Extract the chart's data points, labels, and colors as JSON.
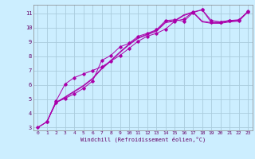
{
  "xlabel": "Windchill (Refroidissement éolien,°C)",
  "bg_color": "#cceeff",
  "grid_color": "#aaccdd",
  "line_color": "#aa00aa",
  "xlim": [
    -0.5,
    23.5
  ],
  "ylim": [
    2.8,
    11.6
  ],
  "xticks": [
    0,
    1,
    2,
    3,
    4,
    5,
    6,
    7,
    8,
    9,
    10,
    11,
    12,
    13,
    14,
    15,
    16,
    17,
    18,
    19,
    20,
    21,
    22,
    23
  ],
  "yticks": [
    3,
    4,
    5,
    6,
    7,
    8,
    9,
    10,
    11
  ],
  "lines": [
    {
      "x": [
        0,
        1,
        2,
        3,
        4,
        5,
        6,
        7,
        8,
        9,
        10,
        11,
        12,
        13,
        14,
        15,
        16,
        17,
        18,
        19,
        20,
        21,
        22,
        23
      ],
      "y": [
        3.0,
        3.4,
        4.75,
        5.05,
        5.35,
        5.75,
        6.25,
        7.7,
        8.05,
        8.65,
        8.9,
        9.4,
        9.6,
        9.85,
        10.5,
        10.55,
        10.45,
        11.05,
        11.25,
        10.35,
        10.4,
        10.5,
        10.5,
        11.15
      ],
      "marker": true
    },
    {
      "x": [
        0,
        1,
        2,
        3,
        4,
        5,
        6,
        7,
        8,
        9,
        10,
        11,
        12,
        13,
        14,
        15,
        16,
        17,
        18,
        19,
        20,
        21,
        22,
        23
      ],
      "y": [
        3.0,
        3.4,
        4.75,
        5.1,
        5.5,
        5.9,
        6.4,
        7.1,
        7.65,
        8.25,
        8.8,
        9.25,
        9.5,
        9.75,
        10.35,
        10.45,
        10.85,
        11.05,
        10.4,
        10.3,
        10.3,
        10.4,
        10.45,
        11.1
      ],
      "marker": false
    },
    {
      "x": [
        0,
        1,
        2,
        3,
        4,
        5,
        6,
        7,
        8,
        9,
        10,
        11,
        12,
        13,
        14,
        15,
        16,
        17,
        18,
        19,
        20,
        21,
        22,
        23
      ],
      "y": [
        3.0,
        3.4,
        4.75,
        5.15,
        5.55,
        5.95,
        6.45,
        7.15,
        7.7,
        8.3,
        8.85,
        9.3,
        9.55,
        9.8,
        10.4,
        10.5,
        10.9,
        11.1,
        10.45,
        10.35,
        10.35,
        10.45,
        10.5,
        11.1
      ],
      "marker": false
    },
    {
      "x": [
        1,
        2,
        3,
        4,
        5,
        6,
        7,
        8,
        9,
        10,
        11,
        12,
        13,
        14,
        15,
        16,
        17,
        18,
        19,
        20,
        21,
        22,
        23
      ],
      "y": [
        3.4,
        4.85,
        6.05,
        6.5,
        6.75,
        7.0,
        7.25,
        7.65,
        8.05,
        8.55,
        9.05,
        9.4,
        9.6,
        9.9,
        10.45,
        10.6,
        11.1,
        11.25,
        10.5,
        10.4,
        10.5,
        10.55,
        11.1
      ],
      "marker": true
    }
  ]
}
